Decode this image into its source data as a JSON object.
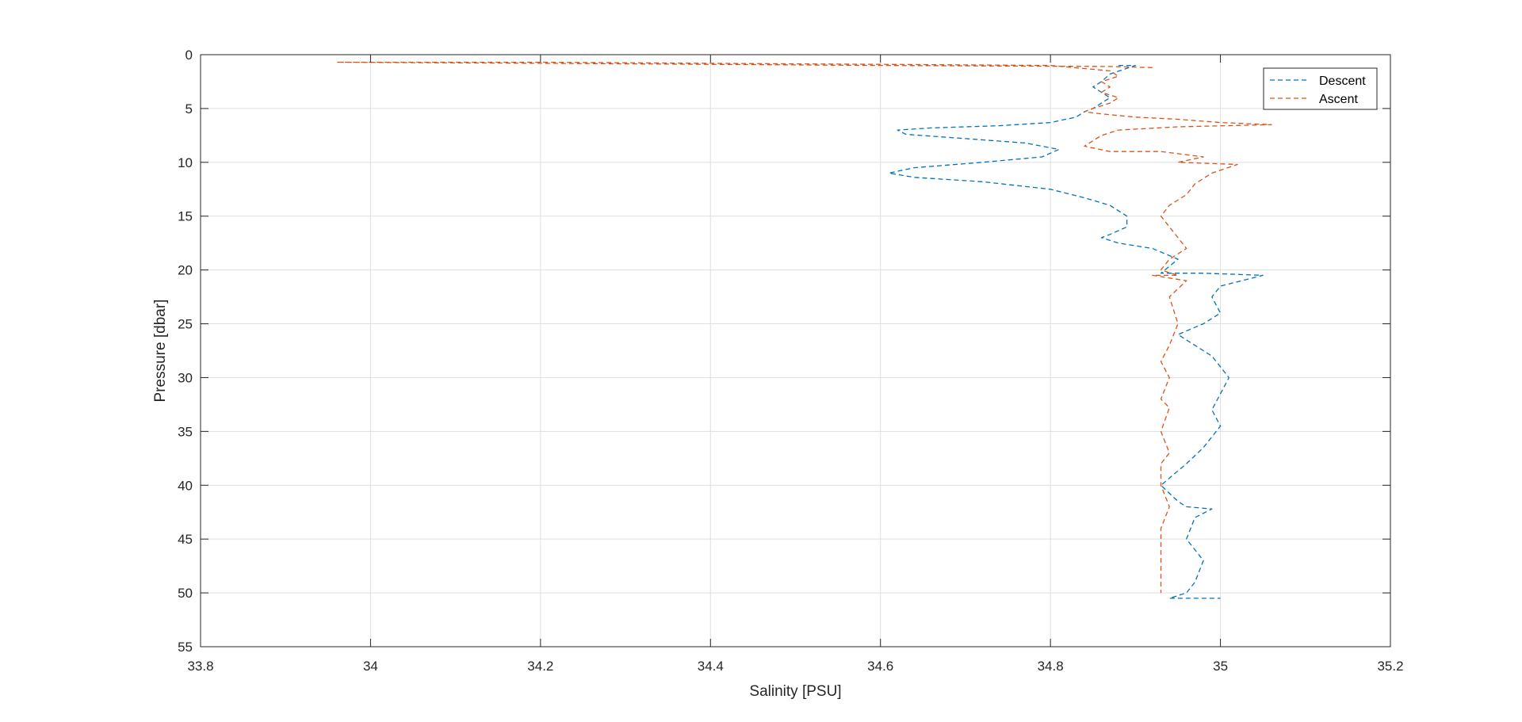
{
  "chart_data": {
    "type": "line",
    "title": "",
    "xlabel": "Salinity [PSU]",
    "ylabel": "Pressure [dbar]",
    "xlim": [
      33.8,
      35.2
    ],
    "ylim": [
      0,
      55
    ],
    "y_reversed": true,
    "grid": true,
    "legend_position": "top-right",
    "xticks": [
      33.8,
      34,
      34.2,
      34.4,
      34.6,
      34.8,
      35,
      35.2
    ],
    "xtick_labels": [
      "33.8",
      "34",
      "34.2",
      "34.4",
      "34.6",
      "34.8",
      "35",
      "35.2"
    ],
    "yticks": [
      0,
      5,
      10,
      15,
      20,
      25,
      30,
      35,
      40,
      45,
      50,
      55
    ],
    "ytick_labels": [
      "0",
      "5",
      "10",
      "15",
      "20",
      "25",
      "30",
      "35",
      "40",
      "45",
      "50",
      "55"
    ],
    "series": [
      {
        "name": "Descent",
        "color": "#0072BD",
        "line_style": "dashed",
        "x": [
          34.88,
          34.9,
          34.87,
          34.86,
          34.85,
          34.86,
          34.87,
          34.86,
          34.85,
          34.84,
          34.83,
          34.8,
          34.74,
          34.66,
          34.62,
          34.63,
          34.7,
          34.77,
          34.81,
          34.79,
          34.72,
          34.64,
          34.61,
          34.64,
          34.72,
          34.8,
          34.84,
          34.87,
          34.89,
          34.89,
          34.87,
          34.86,
          34.88,
          34.92,
          34.95,
          34.93,
          34.98,
          35.05,
          35.0,
          34.99,
          35.0,
          34.98,
          34.95,
          34.97,
          34.99,
          35.0,
          35.01,
          35.0,
          34.99,
          35.0,
          34.98,
          34.96,
          34.93,
          34.95,
          34.96,
          34.99,
          34.97,
          34.96,
          34.98,
          34.97,
          34.96,
          34.94,
          35.0
        ],
        "y": [
          1.0,
          1.0,
          1.8,
          2.5,
          3.0,
          3.5,
          4.0,
          4.5,
          5.0,
          5.3,
          5.8,
          6.3,
          6.6,
          6.8,
          7.0,
          7.4,
          7.8,
          8.2,
          8.8,
          9.5,
          10.0,
          10.5,
          11.0,
          11.4,
          11.8,
          12.5,
          13.3,
          14.0,
          15.0,
          16.0,
          16.7,
          17.0,
          17.5,
          18.0,
          19.0,
          20.3,
          20.3,
          20.5,
          21.5,
          22.5,
          24.0,
          25.0,
          26.0,
          27.0,
          28.0,
          29.0,
          30.0,
          31.5,
          33.0,
          34.5,
          36.5,
          38.0,
          40.0,
          41.5,
          42.0,
          42.2,
          43.0,
          45.0,
          47.0,
          49.0,
          50.0,
          50.5,
          50.5
        ]
      },
      {
        "name": "Ascent",
        "color": "#D95319",
        "line_style": "dashed",
        "x": [
          34.92,
          34.87,
          34.6,
          34.4,
          34.2,
          33.96,
          34.2,
          34.4,
          34.6,
          34.8,
          34.87,
          34.88,
          34.86,
          34.87,
          34.86,
          34.88,
          34.87,
          34.85,
          34.84,
          34.86,
          34.9,
          34.95,
          35.0,
          35.06,
          34.95,
          34.88,
          34.86,
          34.84,
          34.87,
          34.93,
          34.98,
          34.95,
          35.02,
          34.99,
          34.97,
          34.96,
          34.94,
          34.93,
          34.94,
          34.95,
          34.96,
          34.94,
          34.93,
          34.95,
          34.92,
          34.96,
          34.94,
          34.95,
          34.94,
          34.93,
          34.94,
          34.93,
          34.94,
          34.93,
          34.94,
          34.93,
          34.93,
          34.94,
          34.93,
          34.93,
          34.93,
          34.93
        ],
        "y": [
          1.2,
          1.1,
          1.0,
          0.9,
          0.8,
          0.7,
          0.7,
          0.8,
          0.9,
          1.0,
          1.5,
          2.0,
          2.5,
          3.0,
          3.5,
          4.0,
          4.5,
          5.0,
          5.3,
          5.5,
          5.8,
          6.0,
          6.3,
          6.5,
          6.7,
          7.0,
          7.5,
          8.5,
          9.0,
          9.0,
          9.5,
          10.0,
          10.2,
          11.0,
          12.0,
          13.0,
          14.0,
          15.0,
          16.0,
          17.0,
          18.0,
          19.0,
          20.0,
          20.5,
          20.5,
          21.0,
          22.5,
          25.0,
          27.0,
          28.5,
          30.0,
          32.0,
          32.8,
          35.0,
          37.0,
          38.0,
          40.0,
          42.0,
          44.0,
          46.0,
          48.0,
          50.0
        ]
      }
    ]
  }
}
